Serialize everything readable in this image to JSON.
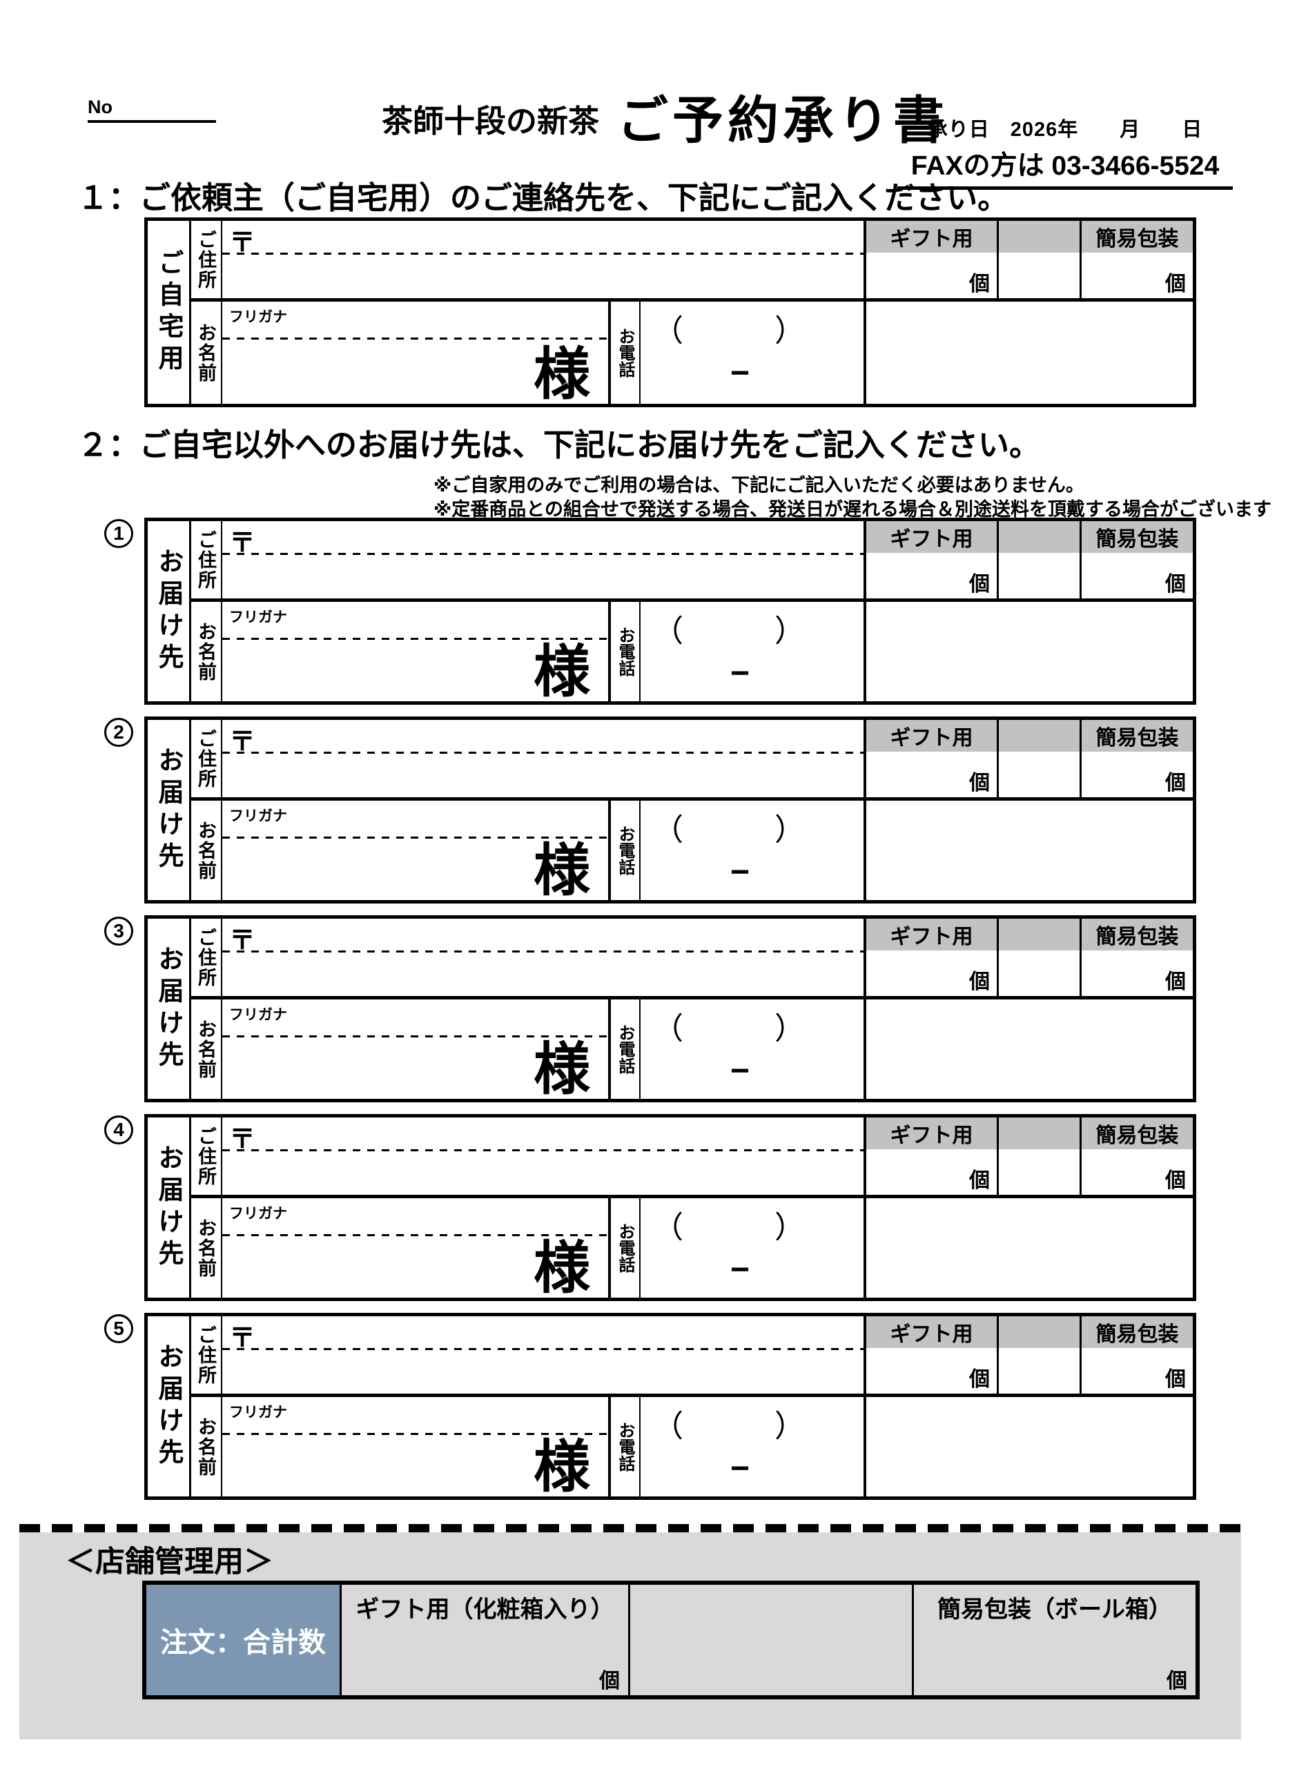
{
  "page": {
    "no_label": "No",
    "title_small": "茶師十段の新茶",
    "title_main": "ご予約承り書",
    "date_line": "承り日　2026年　　月　　日",
    "fax_line": "FAXの方は 03-3466-5524"
  },
  "section1": {
    "heading": "１：ご依頼主（ご自宅用）のご連絡先を、下記にご記入ください。",
    "block_label": "ご自宅用"
  },
  "section2": {
    "heading": "２：ご自宅以外へのお届け先は、下記にお届け先をご記入ください。",
    "note1": "※ご自家用のみでご利用の場合は、下記にご記入いただく必要はありません。",
    "note2": "※定番商品との組合せで発送する場合、発送日が遅れる場合＆別途送料を頂戴する場合がございます",
    "block_label": "お届け先",
    "block_numbers": [
      "1",
      "2",
      "3",
      "4",
      "5"
    ]
  },
  "form_labels": {
    "address": "ご住所",
    "postal_mark": "〒",
    "name": "お名前",
    "furigana": "フリガナ",
    "honorific": "様",
    "phone": "お電話",
    "phone_parens": "（　　　）",
    "phone_dash": "−",
    "gift": "ギフト用",
    "simple_wrap": "簡易包装",
    "unit": "個"
  },
  "store_section": {
    "heading": "＜店舗管理用＞",
    "total_label": "注文：合計数",
    "gift_label": "ギフト用（化粧箱入り）",
    "wrap_label": "簡易包装（ボール箱）",
    "unit": "個"
  },
  "colors": {
    "gray_header": "#c2c2c2",
    "gray_band": "#d9d9d9",
    "blue_total": "#7d97b2"
  }
}
